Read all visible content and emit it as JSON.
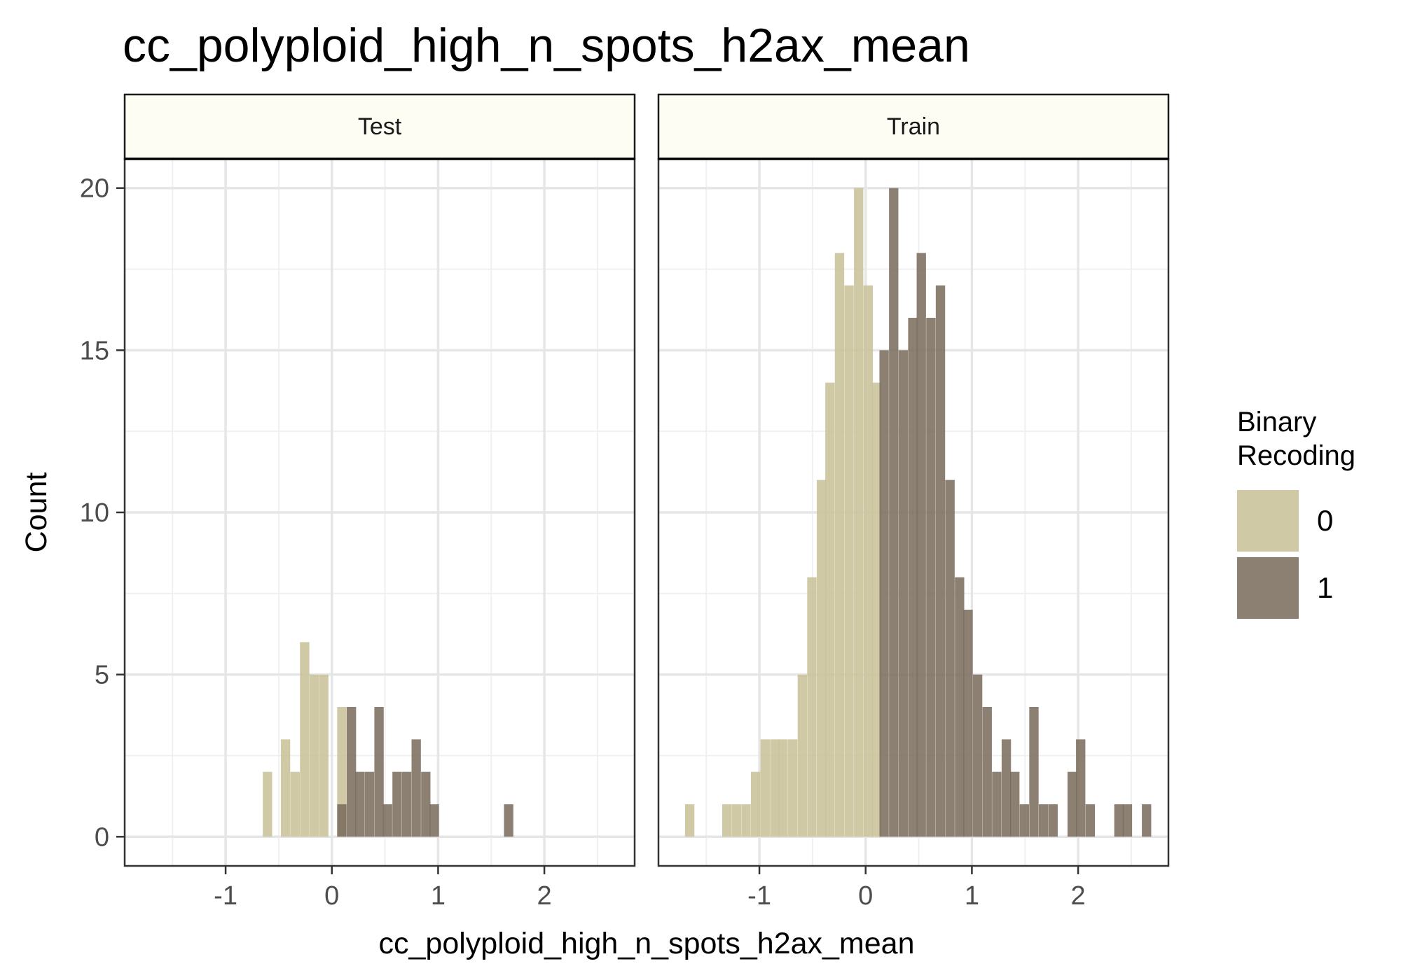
{
  "chart_data": {
    "type": "bar",
    "title": "cc_polyploid_high_n_spots_h2ax_mean",
    "xlabel": "cc_polyploid_high_n_spots_h2ax_mean",
    "ylabel": "Count",
    "xlim": [
      -1.95,
      2.85
    ],
    "ylim": [
      -0.9,
      20.9
    ],
    "xticks": [
      -1,
      0,
      1,
      2
    ],
    "xtick_labels": [
      "-1",
      "0",
      "1",
      "2"
    ],
    "yticks": [
      0,
      5,
      10,
      15,
      20
    ],
    "ytick_labels": [
      "0",
      "5",
      "10",
      "15",
      "20"
    ],
    "grid": true,
    "bin_width": 0.088,
    "legend": {
      "title_lines": [
        "Binary",
        "Recoding"
      ],
      "placement": "right",
      "entries": [
        {
          "label": "0",
          "color": "#c8c096"
        },
        {
          "label": "1",
          "color": "#786a5a"
        }
      ]
    },
    "facets": [
      {
        "name": "Test",
        "series": [
          {
            "name": "0",
            "color": "#c8c096",
            "bin_starts": [
              -0.65,
              -0.48,
              -0.39,
              -0.3,
              -0.21,
              -0.12,
              0.05
            ],
            "values": [
              2,
              3,
              2,
              6,
              5,
              5,
              4
            ]
          },
          {
            "name": "1",
            "color": "#786a5a",
            "bin_starts": [
              0.05,
              0.14,
              0.22,
              0.31,
              0.4,
              0.48,
              0.57,
              0.66,
              0.75,
              0.84,
              0.92,
              1.62
            ],
            "values": [
              1,
              4,
              2,
              2,
              4,
              1,
              2,
              2,
              3,
              2,
              1,
              1
            ]
          }
        ]
      },
      {
        "name": "Train",
        "series": [
          {
            "name": "0",
            "color": "#c8c096",
            "bin_starts": [
              -1.7,
              -1.35,
              -1.26,
              -1.17,
              -1.08,
              -0.99,
              -0.9,
              -0.82,
              -0.73,
              -0.64,
              -0.55,
              -0.46,
              -0.38,
              -0.29,
              -0.2,
              -0.11,
              -0.02,
              0.06
            ],
            "values": [
              1,
              1,
              1,
              1,
              2,
              3,
              3,
              3,
              3,
              5,
              8,
              11,
              14,
              18,
              17,
              20,
              17,
              14
            ]
          },
          {
            "name": "1",
            "color": "#786a5a",
            "bin_starts": [
              0.13,
              0.22,
              0.31,
              0.4,
              0.48,
              0.57,
              0.66,
              0.75,
              0.84,
              0.92,
              1.01,
              1.1,
              1.19,
              1.28,
              1.36,
              1.45,
              1.54,
              1.63,
              1.72,
              1.9,
              1.98,
              2.07,
              2.34,
              2.42,
              2.6
            ],
            "values": [
              15,
              20,
              15,
              16,
              18,
              16,
              17,
              11,
              8,
              7,
              5,
              4,
              2,
              3,
              2,
              1,
              4,
              1,
              1,
              2,
              3,
              1,
              1,
              1,
              1
            ]
          }
        ]
      }
    ]
  }
}
